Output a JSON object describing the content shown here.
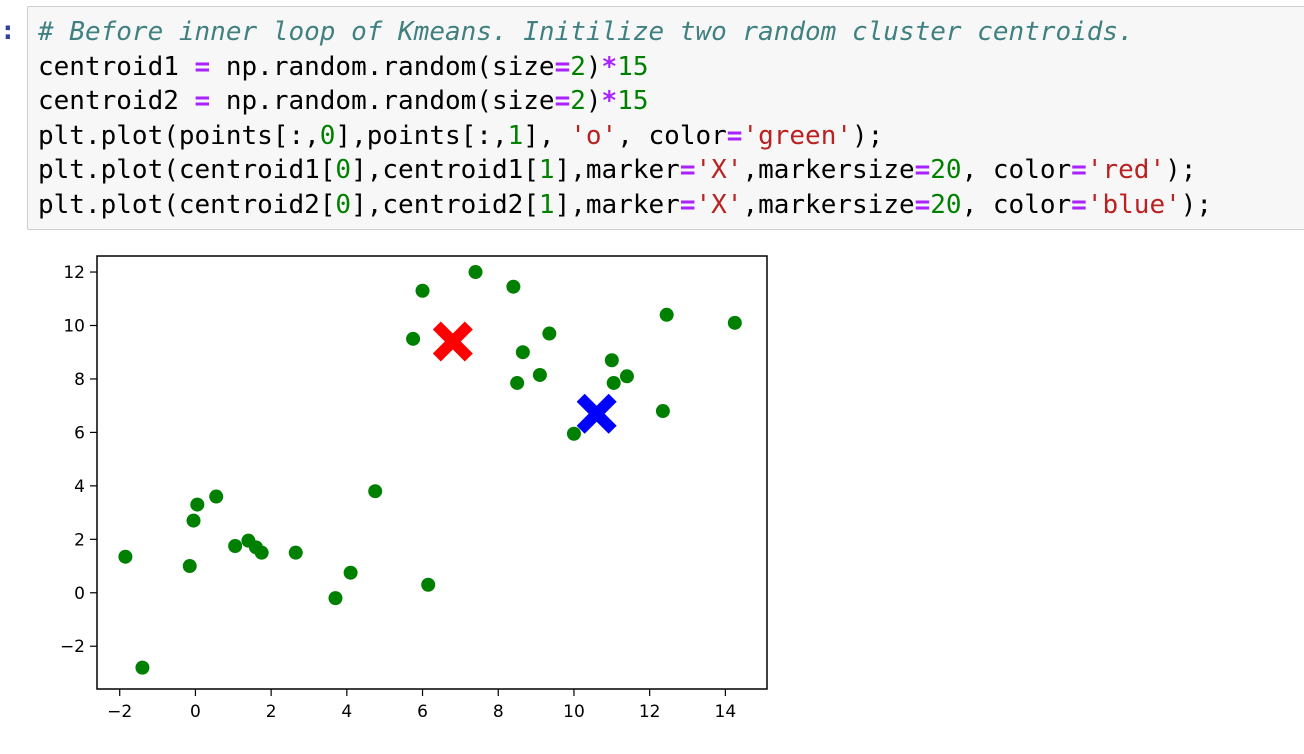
{
  "cell": {
    "prompt": ":",
    "code_lines": [
      [
        {
          "t": "# Before inner loop of Kmeans. Initilize two random cluster centroids.",
          "c": "comment"
        }
      ],
      [
        {
          "t": "centroid1 ",
          "c": "plain"
        },
        {
          "t": "=",
          "c": "op"
        },
        {
          "t": " np.random.random(size",
          "c": "plain"
        },
        {
          "t": "=",
          "c": "op"
        },
        {
          "t": "2",
          "c": "num"
        },
        {
          "t": ")",
          "c": "plain"
        },
        {
          "t": "*",
          "c": "op"
        },
        {
          "t": "15",
          "c": "num"
        }
      ],
      [
        {
          "t": "centroid2 ",
          "c": "plain"
        },
        {
          "t": "=",
          "c": "op"
        },
        {
          "t": " np.random.random(size",
          "c": "plain"
        },
        {
          "t": "=",
          "c": "op"
        },
        {
          "t": "2",
          "c": "num"
        },
        {
          "t": ")",
          "c": "plain"
        },
        {
          "t": "*",
          "c": "op"
        },
        {
          "t": "15",
          "c": "num"
        }
      ],
      [
        {
          "t": "plt.plot(points[:,",
          "c": "plain"
        },
        {
          "t": "0",
          "c": "num"
        },
        {
          "t": "],points[:,",
          "c": "plain"
        },
        {
          "t": "1",
          "c": "num"
        },
        {
          "t": "], ",
          "c": "plain"
        },
        {
          "t": "'o'",
          "c": "str"
        },
        {
          "t": ", color",
          "c": "plain"
        },
        {
          "t": "=",
          "c": "op"
        },
        {
          "t": "'green'",
          "c": "str"
        },
        {
          "t": ");",
          "c": "plain"
        }
      ],
      [
        {
          "t": "plt.plot(centroid1[",
          "c": "plain"
        },
        {
          "t": "0",
          "c": "num"
        },
        {
          "t": "],centroid1[",
          "c": "plain"
        },
        {
          "t": "1",
          "c": "num"
        },
        {
          "t": "],marker",
          "c": "plain"
        },
        {
          "t": "=",
          "c": "op"
        },
        {
          "t": "'X'",
          "c": "str"
        },
        {
          "t": ",markersize",
          "c": "plain"
        },
        {
          "t": "=",
          "c": "op"
        },
        {
          "t": "20",
          "c": "num"
        },
        {
          "t": ", color",
          "c": "plain"
        },
        {
          "t": "=",
          "c": "op"
        },
        {
          "t": "'red'",
          "c": "str"
        },
        {
          "t": ");",
          "c": "plain"
        }
      ],
      [
        {
          "t": "plt.plot(centroid2[",
          "c": "plain"
        },
        {
          "t": "0",
          "c": "num"
        },
        {
          "t": "],centroid2[",
          "c": "plain"
        },
        {
          "t": "1",
          "c": "num"
        },
        {
          "t": "],marker",
          "c": "plain"
        },
        {
          "t": "=",
          "c": "op"
        },
        {
          "t": "'X'",
          "c": "str"
        },
        {
          "t": ",markersize",
          "c": "plain"
        },
        {
          "t": "=",
          "c": "op"
        },
        {
          "t": "20",
          "c": "num"
        },
        {
          "t": ", color",
          "c": "plain"
        },
        {
          "t": "=",
          "c": "op"
        },
        {
          "t": "'blue'",
          "c": "str"
        },
        {
          "t": ");",
          "c": "plain"
        }
      ]
    ]
  },
  "chart_data": {
    "type": "scatter",
    "title": "",
    "xlabel": "",
    "ylabel": "",
    "xlim": [
      -2.6,
      15.1
    ],
    "ylim": [
      -3.6,
      12.6
    ],
    "xticks": [
      -2,
      0,
      2,
      4,
      6,
      8,
      10,
      12,
      14
    ],
    "yticks": [
      -2,
      0,
      2,
      4,
      6,
      8,
      10,
      12
    ],
    "grid": false,
    "legend": "none",
    "series": [
      {
        "marker": "o",
        "color": "#008000",
        "points": [
          [
            -1.85,
            1.35
          ],
          [
            -1.4,
            -2.8
          ],
          [
            -0.15,
            1.0
          ],
          [
            -0.05,
            2.7
          ],
          [
            0.05,
            3.3
          ],
          [
            0.55,
            3.6
          ],
          [
            1.05,
            1.75
          ],
          [
            1.4,
            1.95
          ],
          [
            1.6,
            1.7
          ],
          [
            1.75,
            1.5
          ],
          [
            2.65,
            1.5
          ],
          [
            3.7,
            -0.2
          ],
          [
            4.1,
            0.75
          ],
          [
            4.75,
            3.8
          ],
          [
            5.75,
            9.5
          ],
          [
            6.0,
            11.3
          ],
          [
            6.15,
            0.3
          ],
          [
            7.4,
            12.0
          ],
          [
            8.4,
            11.45
          ],
          [
            8.5,
            7.85
          ],
          [
            8.65,
            9.0
          ],
          [
            9.1,
            8.15
          ],
          [
            9.35,
            9.7
          ],
          [
            10.0,
            5.95
          ],
          [
            11.0,
            8.7
          ],
          [
            11.05,
            7.85
          ],
          [
            11.4,
            8.1
          ],
          [
            12.35,
            6.8
          ],
          [
            12.45,
            10.4
          ],
          [
            14.25,
            10.1
          ]
        ]
      },
      {
        "marker": "X",
        "color": "#ff0000",
        "points": [
          [
            6.8,
            9.4
          ]
        ]
      },
      {
        "marker": "X",
        "color": "#0000ff",
        "points": [
          [
            10.6,
            6.7
          ]
        ]
      }
    ]
  }
}
